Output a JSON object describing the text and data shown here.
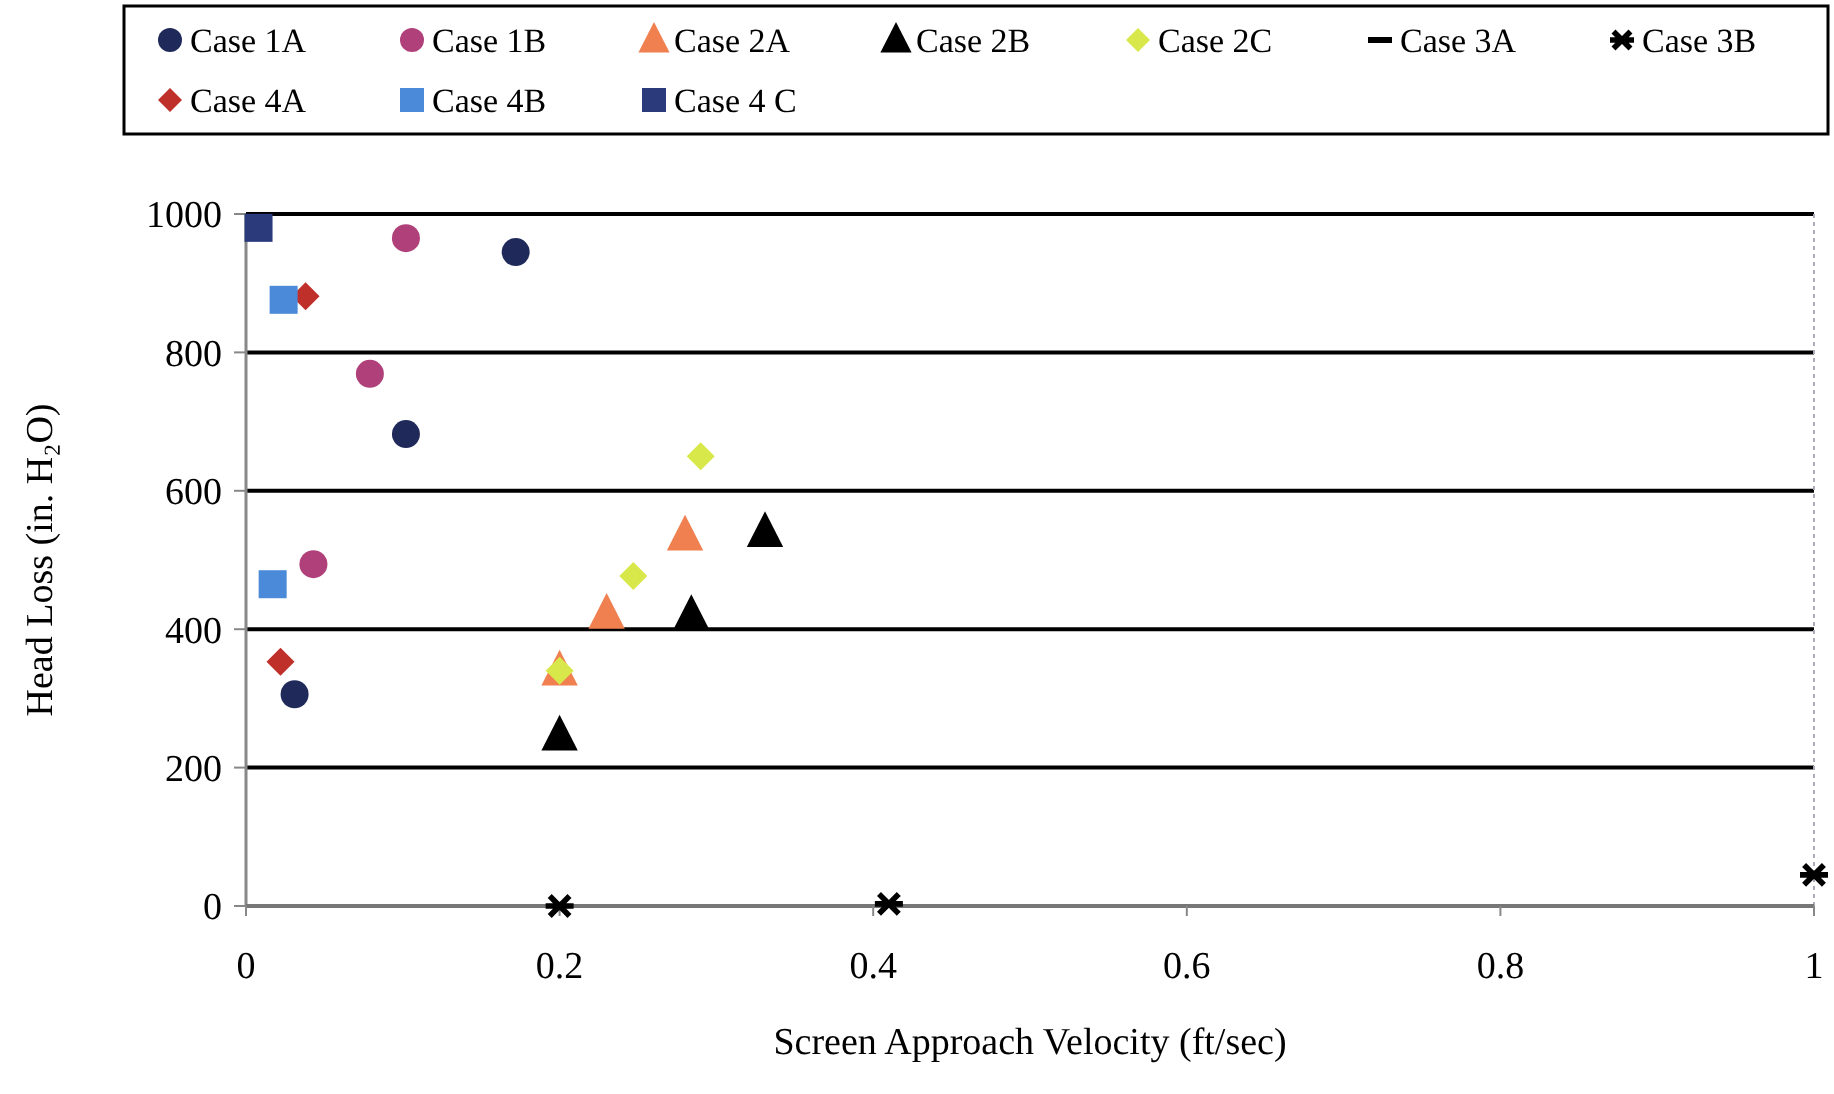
{
  "chart_data": {
    "type": "scatter",
    "xlabel": "Screen Approach Velocity (ft/sec)",
    "ylabel": "Head Loss (in. H₂O)",
    "xlim": [
      0,
      1
    ],
    "ylim": [
      0,
      1000
    ],
    "xticks": [
      0,
      0.2,
      0.4,
      0.6,
      0.8,
      1
    ],
    "yticks": [
      0,
      200,
      400,
      600,
      800,
      1000
    ],
    "grid": "y",
    "legend": "top",
    "series": [
      {
        "name": "Case 1A",
        "color": "#1f2a5a",
        "marker": "circle",
        "x": [
          0.172,
          0.102,
          0.031
        ],
        "values": [
          945,
          682,
          306
        ]
      },
      {
        "name": "Case 1B",
        "color": "#b0407a",
        "marker": "circle",
        "x": [
          0.102,
          0.079,
          0.043
        ],
        "values": [
          965,
          769,
          494
        ]
      },
      {
        "name": "Case 2A",
        "color": "#f08050",
        "marker": "triangle",
        "x": [
          0.28,
          0.23,
          0.2
        ],
        "values": [
          535,
          422,
          340
        ]
      },
      {
        "name": "Case 2B",
        "color": "#000000",
        "marker": "triangle",
        "x": [
          0.331,
          0.284,
          0.2
        ],
        "values": [
          540,
          420,
          246
        ]
      },
      {
        "name": "Case 2C",
        "color": "#d8e84a",
        "marker": "diamond",
        "x": [
          0.29,
          0.247,
          0.2
        ],
        "values": [
          650,
          477,
          340
        ]
      },
      {
        "name": "Case 3A",
        "color": "#000000",
        "marker": "dash"
      },
      {
        "name": "Case 3B",
        "color": "#000000",
        "marker": "cross",
        "x": [
          0.2,
          0.41,
          1
        ],
        "values": [
          0,
          3,
          45
        ]
      },
      {
        "name": "Case 4A",
        "color": "#c0302a",
        "marker": "diamond",
        "x": [
          0.038,
          0.022
        ],
        "values": [
          881,
          353
        ]
      },
      {
        "name": "Case 4B",
        "color": "#4a8ad8",
        "marker": "square",
        "x": [
          0.024,
          0.017
        ],
        "values": [
          876,
          465
        ]
      },
      {
        "name": "Case 4 C",
        "color": "#2a3a7a",
        "marker": "square",
        "x": [
          0.008
        ],
        "values": [
          980
        ]
      }
    ]
  }
}
